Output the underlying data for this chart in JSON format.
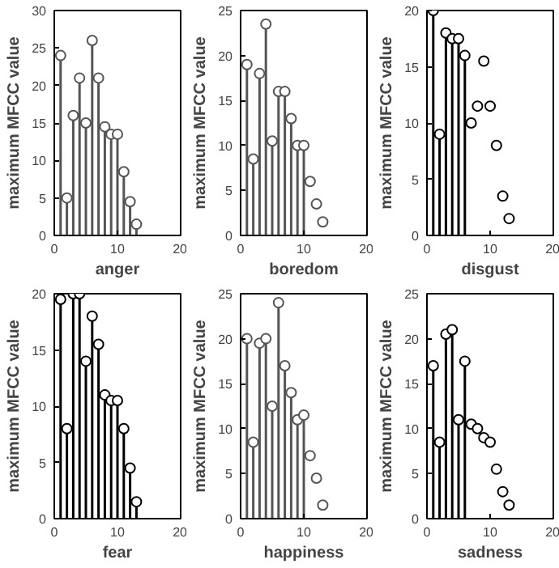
{
  "chart_data": [
    {
      "type": "lollipop",
      "xlabel": "anger",
      "ylabel": "maximum MFCC value",
      "xlim": [
        0,
        20
      ],
      "ylim": [
        0,
        30
      ],
      "xticks": [
        0,
        10,
        20
      ],
      "yticks": [
        0,
        5,
        10,
        15,
        20,
        25,
        30
      ],
      "marker": "circle",
      "series": [
        {
          "type": "lollipop",
          "color": "#555555",
          "x": [
            1,
            2,
            3,
            4,
            5,
            6,
            7,
            8,
            9,
            10,
            11,
            12,
            13
          ],
          "values": [
            24,
            5,
            16,
            21,
            15,
            26,
            21,
            14.5,
            13.5,
            13.5,
            8.5,
            4.5,
            1.5
          ]
        }
      ]
    },
    {
      "type": "lollipop",
      "xlabel": "boredom",
      "ylabel": "maximum MFCC value",
      "xlim": [
        0,
        20
      ],
      "ylim": [
        0,
        25
      ],
      "xticks": [
        0,
        10,
        20
      ],
      "yticks": [
        0,
        5,
        10,
        15,
        20,
        25
      ],
      "marker": "circle",
      "series": [
        {
          "type": "lollipop",
          "color": "#555555",
          "x": [
            1,
            2,
            3,
            4,
            5,
            6,
            7,
            8,
            9,
            10
          ],
          "values": [
            19,
            8.5,
            18,
            23.5,
            10.5,
            16,
            16,
            13,
            10,
            10
          ]
        },
        {
          "type": "scatter",
          "color": "#555555",
          "x": [
            11,
            12,
            13
          ],
          "values": [
            6,
            3.5,
            1.5
          ]
        }
      ]
    },
    {
      "type": "lollipop",
      "xlabel": "disgust",
      "ylabel": "maximum MFCC value",
      "xlim": [
        0,
        20
      ],
      "ylim": [
        0,
        20
      ],
      "xticks": [
        0,
        10,
        20
      ],
      "yticks": [
        0,
        5,
        10,
        15,
        20
      ],
      "marker": "circle",
      "series": [
        {
          "type": "lollipop",
          "color": "#000000",
          "x": [
            1,
            2,
            3,
            4,
            5,
            6
          ],
          "values": [
            20,
            9,
            18,
            17.5,
            17.5,
            16
          ]
        },
        {
          "type": "scatter",
          "color": "#000000",
          "x": [
            7,
            8,
            9,
            10,
            11,
            12,
            13
          ],
          "values": [
            10,
            11.5,
            15.5,
            11.5,
            8,
            3.5,
            1.5
          ]
        }
      ]
    },
    {
      "type": "lollipop",
      "xlabel": "fear",
      "ylabel": "maximum MFCC value",
      "xlim": [
        0,
        20
      ],
      "ylim": [
        0,
        20
      ],
      "xticks": [
        0,
        10,
        20
      ],
      "yticks": [
        0,
        5,
        10,
        15,
        20
      ],
      "marker": "circle",
      "series": [
        {
          "type": "lollipop",
          "color": "#000000",
          "x": [
            1,
            2,
            3,
            4,
            5,
            6,
            7,
            8,
            9,
            10,
            11,
            12,
            13
          ],
          "values": [
            19.5,
            8,
            20,
            20,
            14,
            18,
            15.5,
            11,
            10.5,
            10.5,
            8,
            4.5,
            1.5
          ]
        }
      ]
    },
    {
      "type": "lollipop",
      "xlabel": "happiness",
      "ylabel": "maximum MFCC value",
      "xlim": [
        0,
        20
      ],
      "ylim": [
        0,
        25
      ],
      "xticks": [
        0,
        10,
        20
      ],
      "yticks": [
        0,
        5,
        10,
        15,
        20,
        25
      ],
      "marker": "circle",
      "series": [
        {
          "type": "lollipop",
          "color": "#555555",
          "x": [
            1,
            2,
            3,
            4,
            5,
            6,
            7,
            8,
            9,
            10
          ],
          "values": [
            20,
            8.5,
            19.5,
            20,
            12.5,
            24,
            17,
            14,
            11,
            11.5
          ]
        },
        {
          "type": "scatter",
          "color": "#555555",
          "x": [
            11,
            12,
            13
          ],
          "values": [
            7,
            4.5,
            1.5
          ]
        }
      ]
    },
    {
      "type": "lollipop",
      "xlabel": "sadness",
      "ylabel": "maximum MFCC value",
      "xlim": [
        0,
        20
      ],
      "ylim": [
        0,
        25
      ],
      "xticks": [
        0,
        10,
        20
      ],
      "yticks": [
        0,
        5,
        10,
        15,
        20,
        25
      ],
      "marker": "circle",
      "series": [
        {
          "type": "lollipop",
          "color": "#000000",
          "x": [
            1,
            2,
            3,
            4,
            5,
            6
          ],
          "values": [
            17,
            8.5,
            20.5,
            21,
            11,
            17.5
          ]
        },
        {
          "type": "scatter",
          "color": "#000000",
          "x": [
            7,
            8,
            9,
            10,
            11,
            12,
            13
          ],
          "values": [
            10.5,
            10,
            9,
            8.5,
            5.5,
            3,
            1.5
          ]
        }
      ]
    }
  ]
}
